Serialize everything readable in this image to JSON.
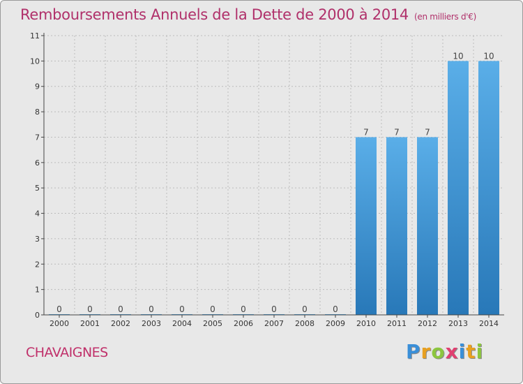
{
  "header": {
    "title": "Remboursements Annuels de la Dette de 2000 à 2014",
    "unit": "(en milliers d'€)"
  },
  "footer": {
    "place": "CHAVAIGNES"
  },
  "logo": {
    "letters": [
      "P",
      "r",
      "o",
      "x",
      "i",
      "t",
      "i"
    ],
    "colors": [
      "#3a8fd8",
      "#e8a020",
      "#8cc63f",
      "#e04070",
      "#3a8fd8",
      "#e8a020",
      "#8cc63f"
    ]
  },
  "colors": {
    "bar_top": "#5aaee8",
    "bar_bottom": "#2878b8",
    "grid": "#bbbbbb",
    "axis": "#444444"
  },
  "chart_data": {
    "type": "bar",
    "title": "Remboursements Annuels de la Dette de 2000 à 2014",
    "categories": [
      "2000",
      "2001",
      "2002",
      "2003",
      "2004",
      "2005",
      "2006",
      "2007",
      "2008",
      "2009",
      "2010",
      "2011",
      "2012",
      "2013",
      "2014"
    ],
    "values": [
      0,
      0,
      0,
      0,
      0,
      0,
      0,
      0,
      0,
      0,
      7,
      7,
      7,
      10,
      10
    ],
    "value_labels": [
      "0",
      "0",
      "0",
      "0",
      "0",
      "0",
      "0",
      "0",
      "0",
      "0",
      "7",
      "7",
      "7",
      "10",
      "10"
    ],
    "yticks": [
      0,
      1,
      2,
      3,
      4,
      5,
      6,
      7,
      8,
      9,
      10,
      11
    ],
    "ylim": [
      0,
      11
    ],
    "xlabel": "",
    "ylabel": "",
    "grid": true
  }
}
